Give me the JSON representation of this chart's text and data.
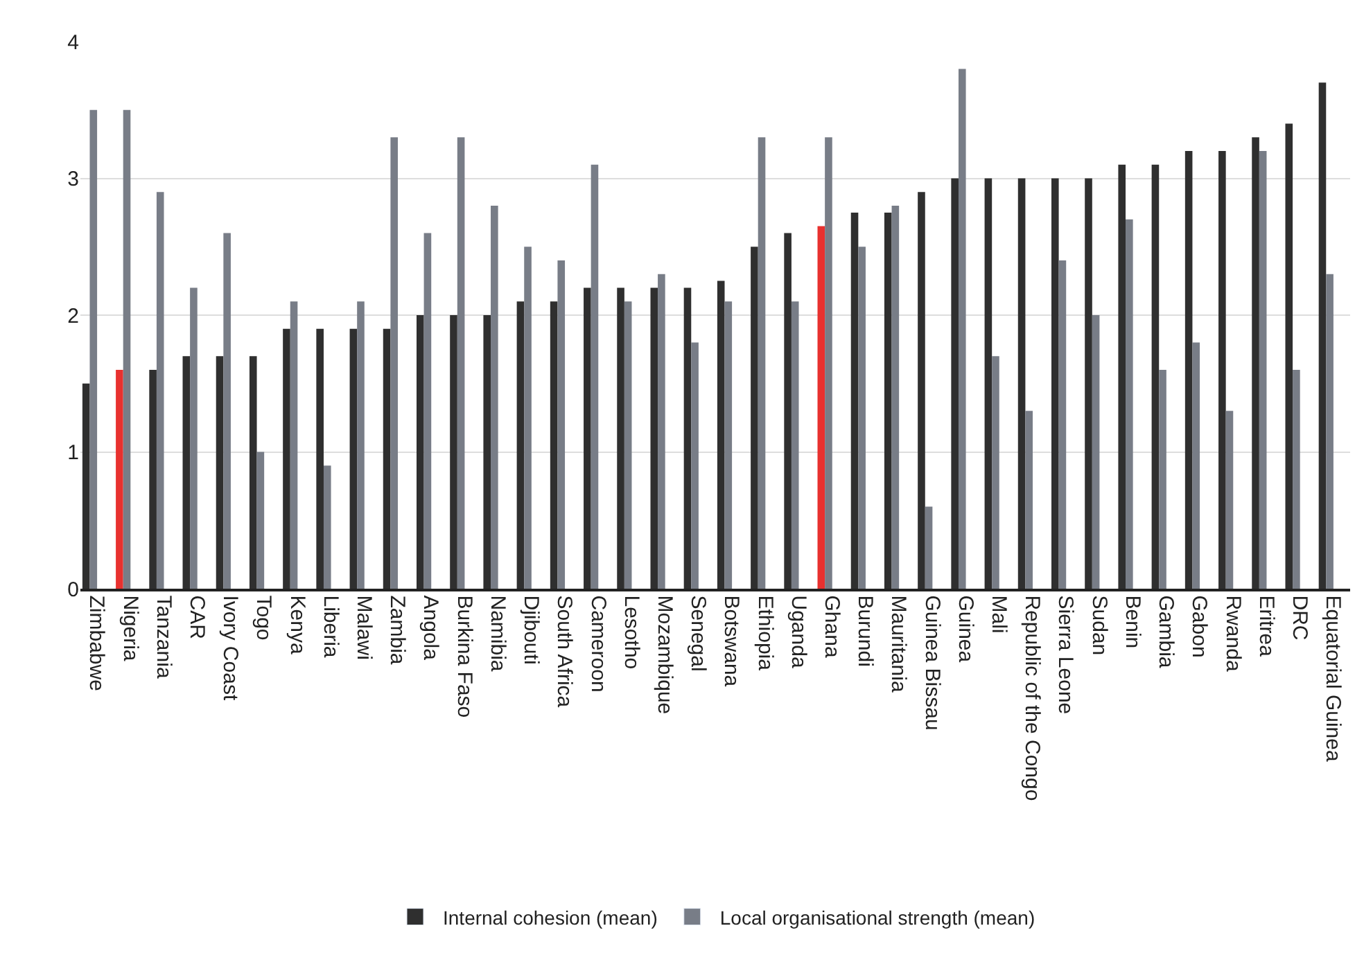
{
  "chart_data": {
    "type": "bar",
    "categories": [
      "Zimbabwe",
      "Nigeria",
      "Tanzania",
      "CAR",
      "Ivory Coast",
      "Togo",
      "Kenya",
      "Liberia",
      "Malawi",
      "Zambia",
      "Angola",
      "Burkina Faso",
      "Namibia",
      "Djibouti",
      "South Africa",
      "Cameroon",
      "Lesotho",
      "Mozambique",
      "Senegal",
      "Botswana",
      "Ethiopia",
      "Uganda",
      "Ghana",
      "Burundi",
      "Mauritania",
      "Guinea Bissau",
      "Guinea",
      "Mali",
      "Republic of the Congo",
      "Sierra Leone",
      "Sudan",
      "Benin",
      "Gambia",
      "Gabon",
      "Rwanda",
      "Eritrea",
      "DRC",
      "Equatorial Guinea"
    ],
    "series": [
      {
        "name": "Internal cohesion (mean)",
        "color": "#2f2f2f",
        "colors": [
          "#2f2f2f",
          "#e8312f",
          "#2f2f2f",
          "#2f2f2f",
          "#2f2f2f",
          "#2f2f2f",
          "#2f2f2f",
          "#2f2f2f",
          "#2f2f2f",
          "#2f2f2f",
          "#2f2f2f",
          "#2f2f2f",
          "#2f2f2f",
          "#2f2f2f",
          "#2f2f2f",
          "#2f2f2f",
          "#2f2f2f",
          "#2f2f2f",
          "#2f2f2f",
          "#2f2f2f",
          "#2f2f2f",
          "#2f2f2f",
          "#e8312f",
          "#2f2f2f",
          "#2f2f2f",
          "#2f2f2f",
          "#2f2f2f",
          "#2f2f2f",
          "#2f2f2f",
          "#2f2f2f",
          "#2f2f2f",
          "#2f2f2f",
          "#2f2f2f",
          "#2f2f2f",
          "#2f2f2f",
          "#2f2f2f",
          "#2f2f2f",
          "#2f2f2f"
        ],
        "values": [
          1.5,
          1.6,
          1.6,
          1.7,
          1.7,
          1.7,
          1.9,
          1.9,
          1.9,
          1.9,
          2.0,
          2.0,
          2.0,
          2.1,
          2.1,
          2.2,
          2.2,
          2.2,
          2.2,
          2.25,
          2.5,
          2.6,
          2.65,
          2.75,
          2.75,
          2.9,
          3.0,
          3.0,
          3.0,
          3.0,
          3.0,
          3.1,
          3.1,
          3.2,
          3.2,
          3.3,
          3.4,
          3.7
        ]
      },
      {
        "name": "Local organisational strength (mean)",
        "color": "#787d87",
        "values": [
          3.5,
          3.5,
          2.9,
          2.2,
          2.6,
          1.0,
          2.1,
          0.9,
          2.1,
          3.3,
          2.6,
          3.3,
          2.8,
          2.5,
          2.4,
          3.1,
          2.1,
          2.3,
          1.8,
          2.1,
          3.3,
          2.1,
          3.3,
          2.5,
          2.8,
          0.6,
          3.8,
          1.7,
          1.3,
          2.4,
          2.0,
          2.7,
          1.6,
          1.8,
          1.3,
          3.2,
          1.6,
          2.3
        ]
      }
    ],
    "ylim": [
      0,
      4
    ],
    "yticks": [
      0,
      1,
      2,
      3,
      4
    ],
    "grid": "y",
    "legend": "bottom"
  }
}
